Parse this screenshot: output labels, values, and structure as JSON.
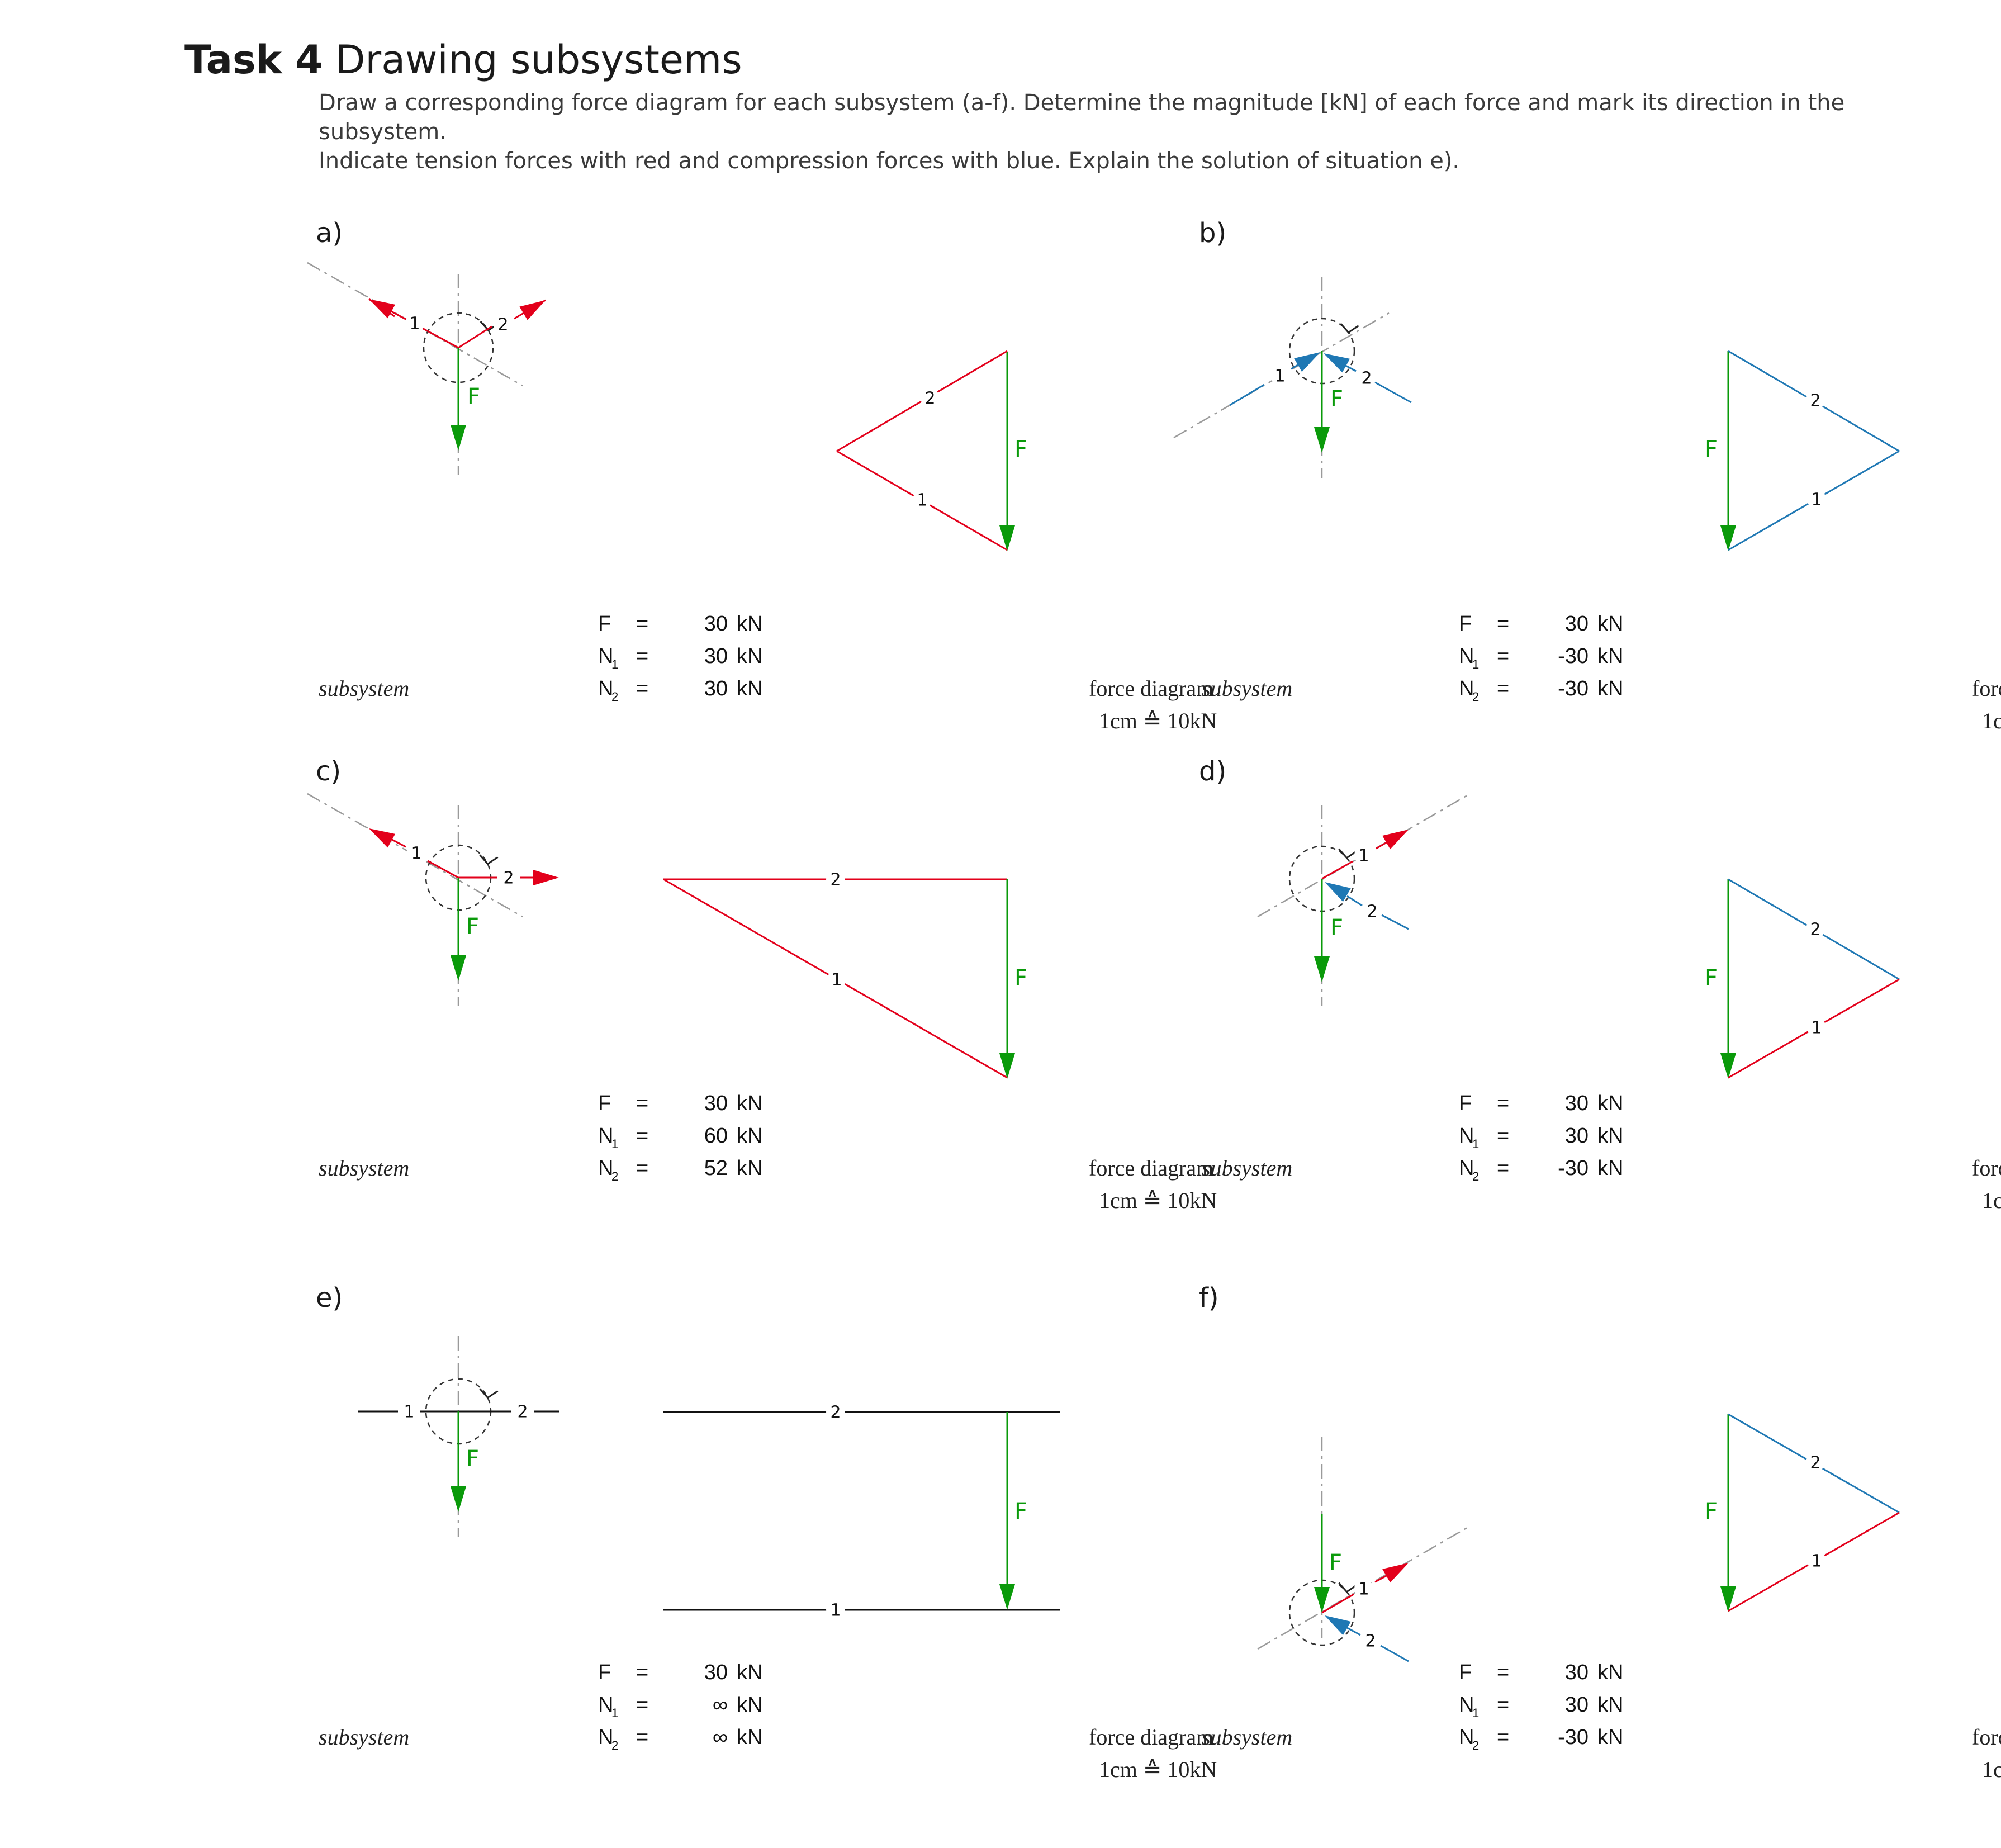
{
  "header": {
    "task_number": "Task 4",
    "task_title": "Drawing subsystems",
    "instructions": [
      "Draw a corresponding force diagram for each subsystem (a-f). Determine the magnitude [kN] of each force and mark its direction in the subsystem.",
      "Indicate tension forces with red and compression forces with blue. Explain the solution of situation e)."
    ]
  },
  "common": {
    "subsystem_label": "subsystem",
    "force_diagram_label": "force diagram",
    "scale_label": "1cm ≙ 10kN",
    "force_label": "F",
    "member1_label": "1",
    "member2_label": "2",
    "eq": "=",
    "unit": "kN",
    "sub1": "1",
    "sub2": "2"
  },
  "colors": {
    "tension": "#e3001b",
    "compression": "#1f78b4",
    "load": "#0a9a0a",
    "neutral": "#111111",
    "axis": "#9a9a9a"
  },
  "cases": [
    {
      "id": "a",
      "label": "a)",
      "values": {
        "F": "30",
        "N1": "30",
        "N2": "30"
      },
      "member_types": [
        "tension",
        "tension"
      ]
    },
    {
      "id": "b",
      "label": "b)",
      "values": {
        "F": "30",
        "N1": "-30",
        "N2": "-30"
      },
      "member_types": [
        "compression",
        "compression"
      ]
    },
    {
      "id": "c",
      "label": "c)",
      "values": {
        "F": "30",
        "N1": "60",
        "N2": "52"
      },
      "member_types": [
        "tension",
        "tension"
      ]
    },
    {
      "id": "d",
      "label": "d)",
      "values": {
        "F": "30",
        "N1": "30",
        "N2": "-30"
      },
      "member_types": [
        "tension",
        "compression"
      ]
    },
    {
      "id": "e",
      "label": "e)",
      "values": {
        "F": "30",
        "N1": "∞",
        "N2": "∞"
      },
      "member_types": [
        "neutral",
        "neutral"
      ]
    },
    {
      "id": "f",
      "label": "f)",
      "values": {
        "F": "30",
        "N1": "30",
        "N2": "-30"
      },
      "member_types": [
        "tension",
        "compression"
      ]
    }
  ]
}
